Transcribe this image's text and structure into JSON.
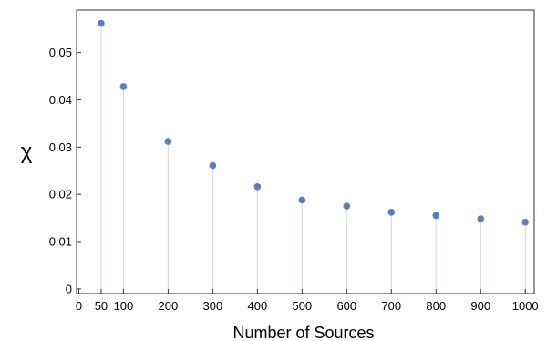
{
  "chart_data": {
    "type": "scatter",
    "style": "stem",
    "title": "",
    "xlabel": "Number of Sources",
    "ylabel": "χ",
    "xlim": [
      -5,
      1020
    ],
    "ylim": [
      -0.001,
      0.059
    ],
    "x_ticks": [
      0,
      50,
      100,
      200,
      300,
      400,
      500,
      600,
      700,
      800,
      900,
      1000
    ],
    "x_tick_labels": [
      "0",
      "50",
      "100",
      "200",
      "300",
      "400",
      "500",
      "600",
      "700",
      "800",
      "900",
      "1000"
    ],
    "y_ticks": [
      0,
      0.01,
      0.02,
      0.03,
      0.04,
      0.05
    ],
    "y_tick_labels": [
      "0",
      "0.01",
      "0.02",
      "0.03",
      "0.04",
      "0.05"
    ],
    "grid": false,
    "legend": "none",
    "series": [
      {
        "x": [
          50,
          100,
          200,
          300,
          400,
          500,
          600,
          700,
          800,
          900,
          1000
        ],
        "y": [
          0.0562,
          0.0428,
          0.0312,
          0.0261,
          0.0216,
          0.0188,
          0.0175,
          0.0162,
          0.0155,
          0.0148,
          0.0141
        ]
      }
    ],
    "colors": {
      "point": "#5b7fb8",
      "stem": "#d3d9ec",
      "frame": "#333333"
    }
  }
}
